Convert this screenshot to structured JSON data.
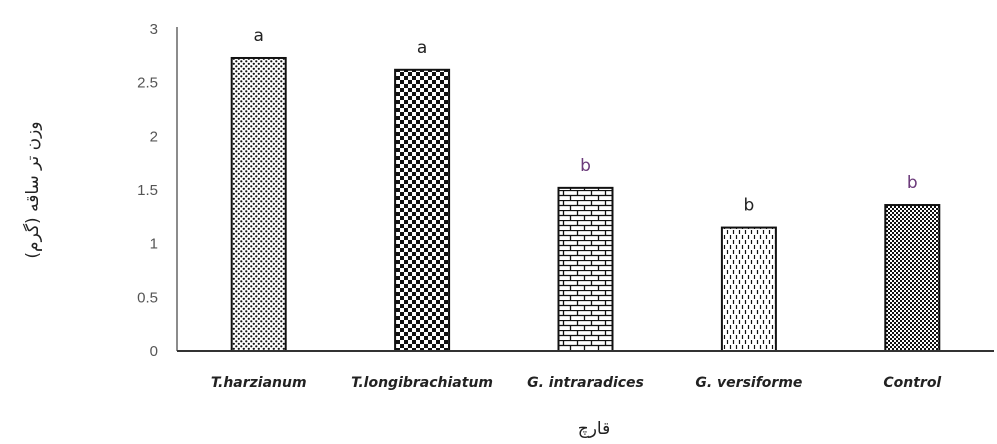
{
  "chart_data": {
    "type": "bar",
    "title": "",
    "xlabel": "قارچ",
    "ylabel": "وزن تر ساقه (گرم)",
    "ylim": [
      0,
      3
    ],
    "yticks": [
      "0",
      "0.5",
      "1",
      "1.5",
      "2",
      "2.5",
      "3"
    ],
    "grid": false,
    "categories": [
      "T.harzianum",
      "T.longibrachiatum",
      "G. intraradices",
      "G. versiforme",
      "Control"
    ],
    "values": [
      2.73,
      2.62,
      1.52,
      1.15,
      1.36
    ],
    "significance_letters": [
      "a",
      "a",
      "b",
      "b",
      "b"
    ],
    "letter_colors": [
      "#222222",
      "#222222",
      "#6b3a7a",
      "#222222",
      "#6b3a7a"
    ],
    "patterns": [
      "fine-dots",
      "checker",
      "brick",
      "dashed-vertical",
      "fine-checker"
    ]
  }
}
